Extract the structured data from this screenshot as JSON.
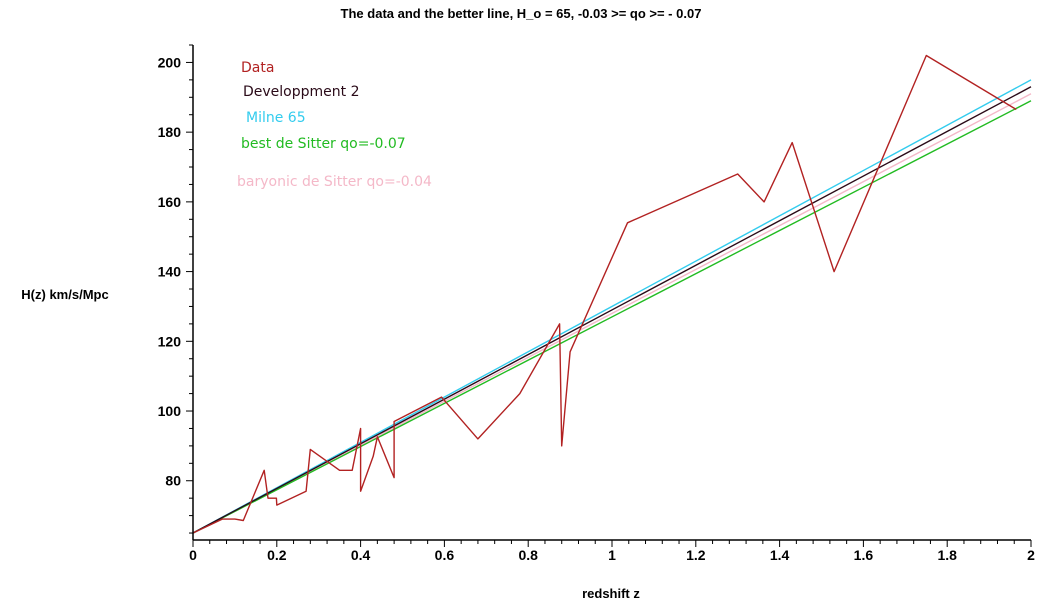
{
  "chart_data": {
    "type": "line",
    "title": "The data and the better line, H_o = 65, -0.03 >= qo >= - 0.07",
    "xlabel": "redshift z",
    "ylabel": "H(z) km/s/Mpc",
    "xlim": [
      0,
      2
    ],
    "ylim": [
      63,
      205
    ],
    "x_ticks": [
      0,
      0.2,
      0.4,
      0.6,
      0.8,
      1,
      1.2,
      1.4,
      1.6,
      1.8,
      2
    ],
    "x_tick_labels": [
      "0",
      "0.2",
      "0.4",
      "0.6",
      "0.8",
      "1",
      "1.2",
      "1.4",
      "1.6",
      "1.8",
      "2"
    ],
    "y_ticks": [
      80,
      100,
      120,
      140,
      160,
      180,
      200
    ],
    "y_tick_labels": [
      "80",
      "100",
      "120",
      "140",
      "160",
      "180",
      "200"
    ],
    "grid": false,
    "legend_position": "top-left",
    "series": [
      {
        "name": "Data",
        "color": "#b22222",
        "x": [
          0,
          0.07,
          0.1,
          0.12,
          0.17,
          0.179,
          0.199,
          0.2,
          0.27,
          0.28,
          0.35,
          0.38,
          0.4,
          0.4,
          0.43,
          0.44,
          0.48,
          0.48,
          0.48,
          0.593,
          0.68,
          0.78,
          0.875,
          0.88,
          0.9,
          1.037,
          1.3,
          1.363,
          1.43,
          1.53,
          1.75,
          1.965
        ],
        "y": [
          65,
          69,
          69,
          68.6,
          83,
          75,
          75,
          73,
          77,
          89,
          83,
          83,
          95,
          77,
          87,
          92.6,
          80.9,
          97,
          97,
          104,
          92,
          105,
          125,
          90,
          117,
          154,
          168,
          160,
          177,
          140,
          202,
          186.5
        ]
      },
      {
        "name": "Developpment 2",
        "color": "#2a0a18",
        "x": [
          0,
          2
        ],
        "y": [
          65,
          193
        ]
      },
      {
        "name": "Milne 65",
        "color": "#33ccee",
        "x": [
          0,
          2
        ],
        "y": [
          65,
          195
        ]
      },
      {
        "name": "best de Sitter qo=-0.07",
        "color": "#22bb22",
        "x": [
          0,
          2
        ],
        "y": [
          65,
          189
        ]
      },
      {
        "name": "baryonic de Sitter qo=-0.04",
        "color": "#f4b8c8",
        "x": [
          0,
          2
        ],
        "y": [
          65,
          191
        ]
      }
    ]
  }
}
